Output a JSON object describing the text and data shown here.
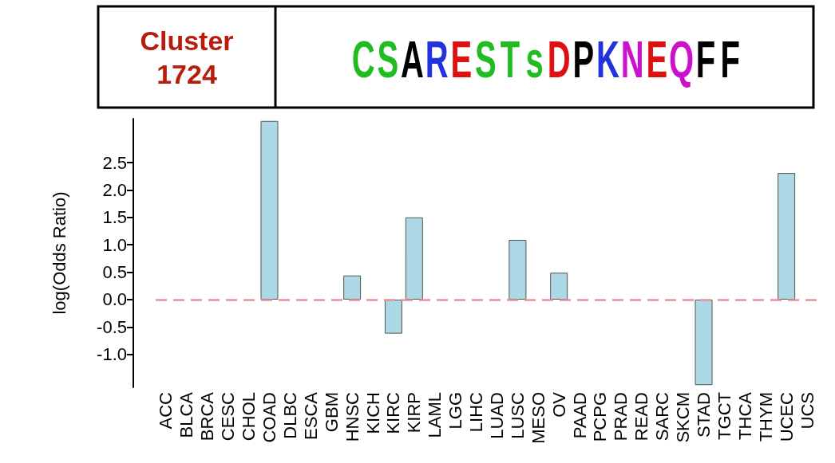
{
  "chart_data": {
    "type": "bar",
    "title": "Cluster 1724",
    "ylabel": "log(Odds Ratio)",
    "annotations": [
      "CSARESTsDPKNEQFF"
    ],
    "categories": [
      "ACC",
      "BLCA",
      "BRCA",
      "CESC",
      "CHOL",
      "COAD",
      "DLBC",
      "ESCA",
      "GBM",
      "HNSC",
      "KICH",
      "KIRC",
      "KIRP",
      "LAML",
      "LGG",
      "LIHC",
      "LUAD",
      "LUSC",
      "MESO",
      "OV",
      "PAAD",
      "PCPG",
      "PRAD",
      "READ",
      "SARC",
      "SKCM",
      "STAD",
      "TGCT",
      "THCA",
      "THYM",
      "UCEC",
      "UCS"
    ],
    "values": [
      null,
      null,
      null,
      null,
      null,
      3.26,
      null,
      null,
      null,
      0.44,
      null,
      -0.62,
      1.5,
      null,
      null,
      null,
      null,
      1.09,
      null,
      0.49,
      null,
      null,
      null,
      null,
      null,
      null,
      -1.56,
      null,
      null,
      null,
      2.31,
      null
    ],
    "color": "#add8e6",
    "ylim": [
      -1.6,
      3.3
    ],
    "yticks": [
      {
        "value": -1,
        "label": "-1.0"
      },
      -0.5,
      {
        "value": 0,
        "label": "0.0"
      },
      0.5,
      {
        "value": 1,
        "label": "1.0"
      },
      1.5,
      {
        "value": 2,
        "label": "2.0"
      },
      2.5
    ],
    "ref_lines": [
      {
        "axis": "y",
        "value": 0,
        "color": "#e8909c",
        "line_style": "dashed"
      }
    ],
    "grid": false
  }
}
